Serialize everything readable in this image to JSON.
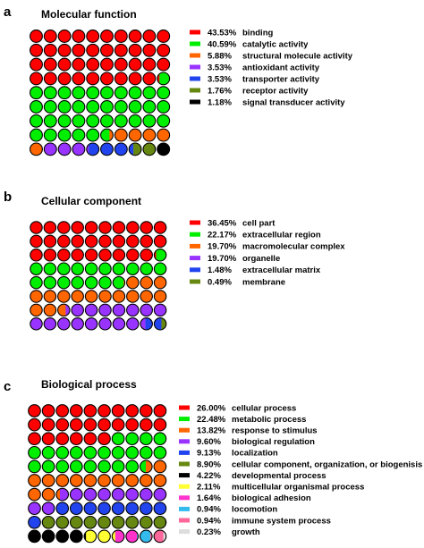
{
  "chart_data": [
    {
      "type": "waffle",
      "panel_letter": "a",
      "title": "Molecular function",
      "grid": {
        "rows": 9,
        "cols": 10
      },
      "series": [
        {
          "name": "binding",
          "value": 43.53,
          "label": "43.53%",
          "color": "#ff0000"
        },
        {
          "name": "catalytic activity",
          "value": 40.59,
          "label": "40.59%",
          "color": "#00ee00"
        },
        {
          "name": "structural molecule activity",
          "value": 5.88,
          "label": "5.88%",
          "color": "#ff6600"
        },
        {
          "name": "antioxidant activity",
          "value": 3.53,
          "label": "3.53%",
          "color": "#9933ff"
        },
        {
          "name": "transporter activity",
          "value": 3.53,
          "label": "3.53%",
          "color": "#2244ee"
        },
        {
          "name": "receptor activity",
          "value": 1.76,
          "label": "1.76%",
          "color": "#668811"
        },
        {
          "name": "signal transducer activity",
          "value": 1.18,
          "label": "1.18%",
          "color": "#000000"
        }
      ]
    },
    {
      "type": "waffle",
      "panel_letter": "b",
      "title": "Cellular component",
      "grid": {
        "rows": 8,
        "cols": 10
      },
      "series": [
        {
          "name": "cell part",
          "value": 36.45,
          "label": "36.45%",
          "color": "#ff0000"
        },
        {
          "name": "extracellular region",
          "value": 22.17,
          "label": "22.17%",
          "color": "#00ee00"
        },
        {
          "name": "macromolecular complex",
          "value": 19.7,
          "label": "19.70%",
          "color": "#ff6600"
        },
        {
          "name": "organelle",
          "value": 19.7,
          "label": "19.70%",
          "color": "#9933ff"
        },
        {
          "name": "extracellular matrix",
          "value": 1.48,
          "label": "1.48%",
          "color": "#2244ee"
        },
        {
          "name": "membrane",
          "value": 0.49,
          "label": "0.49%",
          "color": "#668811"
        }
      ]
    },
    {
      "type": "waffle",
      "panel_letter": "c",
      "title": "Biological process",
      "grid": {
        "rows": 10,
        "cols": 10
      },
      "series": [
        {
          "name": "cellular process",
          "value": 26.0,
          "label": "26.00%",
          "color": "#ff0000"
        },
        {
          "name": "metabolic process",
          "value": 22.48,
          "label": "22.48%",
          "color": "#00ee00"
        },
        {
          "name": "response to stimulus",
          "value": 13.82,
          "label": "13.82%",
          "color": "#ff6600"
        },
        {
          "name": "biological regulation",
          "value": 9.6,
          "label": "9.60%",
          "color": "#9933ff"
        },
        {
          "name": "localization",
          "value": 9.13,
          "label": "9.13%",
          "color": "#2244ee"
        },
        {
          "name": "cellular component, organization, or biogenisis",
          "value": 8.9,
          "label": "8.90%",
          "color": "#668811"
        },
        {
          "name": "developmental process",
          "value": 4.22,
          "label": "4.22%",
          "color": "#000000"
        },
        {
          "name": "multicellular organismal process",
          "value": 2.11,
          "label": "2.11%",
          "color": "#ffff33"
        },
        {
          "name": "biological adhesion",
          "value": 1.64,
          "label": "1.64%",
          "color": "#ff33cc"
        },
        {
          "name": "locomotion",
          "value": 0.94,
          "label": "0.94%",
          "color": "#33bbee"
        },
        {
          "name": "immune system process",
          "value": 0.94,
          "label": "0.94%",
          "color": "#ff6699"
        },
        {
          "name": "growth",
          "value": 0.23,
          "label": "0.23%",
          "color": "#dddddd"
        }
      ]
    }
  ]
}
